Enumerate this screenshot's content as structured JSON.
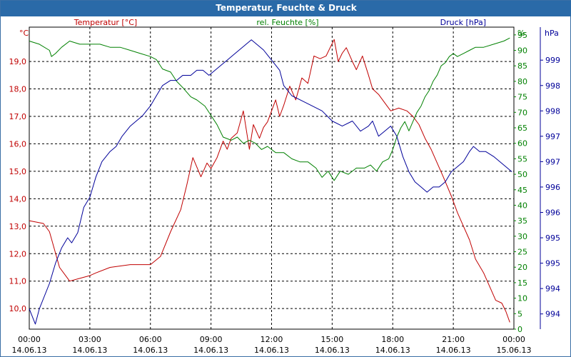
{
  "title": "Temperatur, Feuchte & Druck",
  "colors": {
    "temp": "#c00000",
    "hum": "#008000",
    "press": "#000099",
    "title_bg": "#2a6aa8",
    "grid": "#000000"
  },
  "chart_data": {
    "type": "line",
    "title": "Temperatur, Feuchte & Druck",
    "x_ticks": [
      {
        "h": 0,
        "time": "00:00",
        "date": "14.06.13"
      },
      {
        "h": 3,
        "time": "03:00",
        "date": "14.06.13"
      },
      {
        "h": 6,
        "time": "06:00",
        "date": "14.06.13"
      },
      {
        "h": 9,
        "time": "09:00",
        "date": "14.06.13"
      },
      {
        "h": 12,
        "time": "12:00",
        "date": "14.06.13"
      },
      {
        "h": 15,
        "time": "15:00",
        "date": "14.06.13"
      },
      {
        "h": 18,
        "time": "18:00",
        "date": "14.06.13"
      },
      {
        "h": 21,
        "time": "21:00",
        "date": "14.06.13"
      },
      {
        "h": 24,
        "time": "00:00",
        "date": "15.06.13"
      }
    ],
    "xlim": [
      0,
      24
    ],
    "axes": {
      "temp": {
        "label": "Temperatur [°C]",
        "unit": "°C",
        "ylim": [
          9.25,
          20.25
        ],
        "ticks": [
          "10,0",
          "11,0",
          "12,0",
          "13,0",
          "14,0",
          "15,0",
          "16,0",
          "17,0",
          "18,0",
          "19,0"
        ],
        "tick_values": [
          10,
          11,
          12,
          13,
          14,
          15,
          16,
          17,
          18,
          19
        ]
      },
      "hum": {
        "label": "rel. Feuchte [%]",
        "unit": "%",
        "ylim": [
          0,
          97.5
        ],
        "ticks": [
          "0",
          "5",
          "10",
          "15",
          "20",
          "25",
          "30",
          "35",
          "40",
          "45",
          "50",
          "55",
          "60",
          "65",
          "70",
          "75",
          "80",
          "85",
          "90",
          "95"
        ],
        "tick_values": [
          0,
          5,
          10,
          15,
          20,
          25,
          30,
          35,
          40,
          45,
          50,
          55,
          60,
          65,
          70,
          75,
          80,
          85,
          90,
          95
        ]
      },
      "press": {
        "label": "Druck [hPa]",
        "unit": "hPa",
        "ylim": [
          993.4,
          999.35
        ],
        "ticks": [
          "994",
          "994",
          "995",
          "995",
          "996",
          "996",
          "997",
          "997",
          "998",
          "998",
          "999"
        ],
        "tick_values": [
          993.7,
          994.2,
          994.7,
          995.2,
          995.7,
          996.2,
          996.7,
          997.2,
          997.7,
          998.2,
          998.7
        ]
      }
    },
    "series": [
      {
        "name": "Temperatur [°C]",
        "axis": "temp",
        "x": [
          0,
          0.7,
          1,
          1.5,
          2,
          2.5,
          3,
          3.3,
          4,
          5,
          5.5,
          6,
          6.5,
          7,
          7.5,
          7.8,
          8.1,
          8.5,
          8.8,
          9,
          9.3,
          9.6,
          9.8,
          10,
          10.3,
          10.6,
          10.9,
          11.1,
          11.4,
          11.6,
          11.8,
          12,
          12.2,
          12.4,
          12.6,
          12.9,
          13.2,
          13.5,
          13.8,
          14.1,
          14.4,
          14.7,
          14.9,
          15.1,
          15.3,
          15.5,
          15.7,
          16,
          16.2,
          16.5,
          16.8,
          17,
          17.3,
          17.6,
          17.9,
          18.3,
          18.7,
          19,
          19.3,
          19.6,
          19.9,
          20.2,
          20.5,
          20.9,
          21.2,
          21.5,
          21.8,
          22.1,
          22.5,
          22.8,
          23.1,
          23.4,
          23.6,
          23.8
        ],
        "values": [
          13.2,
          13.1,
          12.8,
          11.5,
          11.0,
          11.1,
          11.2,
          11.3,
          11.5,
          11.6,
          11.6,
          11.6,
          11.9,
          12.8,
          13.6,
          14.5,
          15.5,
          14.8,
          15.3,
          15.1,
          15.5,
          16.1,
          15.8,
          16.2,
          16.4,
          17.2,
          15.8,
          16.7,
          16.2,
          16.6,
          16.8,
          17.2,
          17.6,
          17.0,
          17.4,
          18.1,
          17.6,
          18.4,
          18.2,
          19.2,
          19.1,
          19.2,
          19.5,
          19.8,
          19.0,
          19.3,
          19.5,
          19.0,
          18.7,
          19.2,
          18.5,
          18.0,
          17.8,
          17.5,
          17.2,
          17.3,
          17.2,
          17.0,
          16.7,
          16.2,
          15.8,
          15.3,
          14.8,
          14.1,
          13.5,
          13.0,
          12.5,
          11.8,
          11.3,
          10.8,
          10.3,
          10.2,
          9.9,
          9.5
        ]
      },
      {
        "name": "rel. Feuchte [%]",
        "axis": "hum",
        "x": [
          0,
          0.5,
          1,
          1.1,
          1.3,
          1.6,
          2,
          2.5,
          3,
          3.5,
          4,
          4.5,
          5,
          5.5,
          6,
          6.3,
          6.6,
          7,
          7.3,
          7.6,
          8,
          8.3,
          8.7,
          9,
          9.3,
          9.6,
          10,
          10.3,
          10.6,
          10.9,
          11.2,
          11.5,
          11.8,
          12.2,
          12.6,
          13,
          13.4,
          13.8,
          14.2,
          14.5,
          14.8,
          15.1,
          15.4,
          15.8,
          16.2,
          16.6,
          16.9,
          17.2,
          17.5,
          17.8,
          18,
          18.2,
          18.4,
          18.6,
          18.8,
          19,
          19.2,
          19.4,
          19.6,
          19.8,
          20,
          20.2,
          20.4,
          20.6,
          20.8,
          21,
          21.2,
          21.5,
          21.8,
          22.1,
          22.5,
          23,
          23.5,
          23.8
        ],
        "values": [
          93,
          92,
          90,
          88,
          89,
          91,
          93,
          92,
          92,
          92,
          91,
          91,
          90,
          89,
          88,
          87,
          84,
          83,
          80,
          78,
          75,
          74,
          72,
          69,
          66,
          62,
          61,
          62,
          60,
          61,
          60,
          58,
          59,
          57,
          57,
          55,
          54,
          54,
          52,
          49,
          51,
          48,
          51,
          50,
          52,
          52,
          53,
          51,
          54,
          55,
          58,
          62,
          65,
          67,
          64,
          67,
          70,
          72,
          75,
          77,
          80,
          82,
          85,
          86,
          88,
          89,
          88,
          89,
          90,
          91,
          91,
          92,
          93,
          94
        ]
      },
      {
        "name": "Druck [hPa]",
        "axis": "press",
        "x": [
          0,
          0.3,
          0.5,
          1,
          1.3,
          1.6,
          1.9,
          2.1,
          2.4,
          2.7,
          3,
          3.3,
          3.6,
          4,
          4.3,
          4.6,
          5,
          5.3,
          5.6,
          6,
          6.3,
          6.6,
          7,
          7.3,
          7.6,
          8,
          8.3,
          8.6,
          8.9,
          9.2,
          9.5,
          9.8,
          10.1,
          10.4,
          10.7,
          11,
          11.3,
          11.6,
          11.8,
          12,
          12.2,
          12.4,
          12.6,
          13,
          13.5,
          14,
          14.5,
          15,
          15.5,
          16,
          16.4,
          16.8,
          17,
          17.3,
          17.6,
          17.9,
          18.2,
          18.5,
          18.8,
          19.1,
          19.4,
          19.7,
          20,
          20.3,
          20.6,
          20.9,
          21.2,
          21.5,
          21.8,
          22,
          22.3,
          22.6,
          23,
          23.3,
          23.6,
          23.9
        ],
        "values": [
          993.8,
          993.5,
          993.8,
          994.3,
          994.7,
          995.0,
          995.2,
          995.1,
          995.3,
          995.8,
          996.0,
          996.4,
          996.7,
          996.9,
          997.0,
          997.2,
          997.4,
          997.5,
          997.6,
          997.8,
          998.0,
          998.2,
          998.3,
          998.3,
          998.4,
          998.4,
          998.5,
          998.5,
          998.4,
          998.5,
          998.6,
          998.7,
          998.8,
          998.9,
          999.0,
          999.1,
          999.0,
          998.9,
          998.8,
          998.7,
          998.6,
          998.5,
          998.2,
          998.0,
          997.9,
          997.8,
          997.7,
          997.5,
          997.4,
          997.5,
          997.3,
          997.4,
          997.5,
          997.2,
          997.3,
          997.4,
          997.2,
          996.8,
          996.5,
          996.3,
          996.2,
          996.1,
          996.2,
          996.2,
          996.3,
          996.5,
          996.6,
          996.7,
          996.9,
          997.0,
          996.9,
          996.9,
          996.8,
          996.7,
          996.6,
          996.5
        ]
      }
    ]
  }
}
